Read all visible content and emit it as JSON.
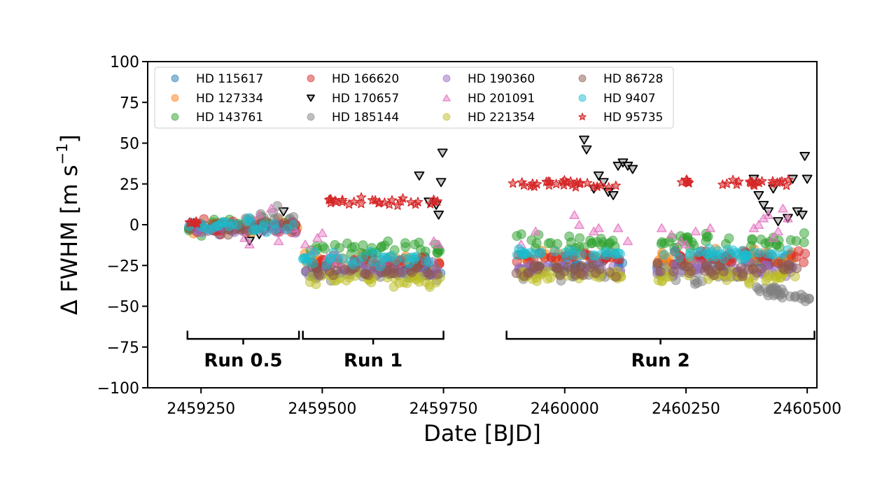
{
  "chart_data": {
    "type": "scatter",
    "xlabel": "Date [BJD]",
    "ylabel_main": "Δ FWHM [m s",
    "ylabel_sup": "−1",
    "ylabel_end": "]",
    "xlim": [
      2459140,
      2460520
    ],
    "ylim": [
      -100,
      100
    ],
    "xticks": [
      2459250,
      2459500,
      2459750,
      2460000,
      2460250,
      2460500
    ],
    "xtick_labels": [
      "2459250",
      "2459500",
      "2459750",
      "2460000",
      "2460250",
      "2460500"
    ],
    "yticks": [
      -100,
      -75,
      -50,
      -25,
      0,
      25,
      50,
      75,
      100
    ],
    "ytick_labels": [
      "−100",
      "−75",
      "−50",
      "−25",
      "0",
      "25",
      "50",
      "75",
      "100"
    ],
    "grid": false,
    "legend_position": "top-left",
    "runs": [
      {
        "label": "Run 0.5",
        "x_start": 2459222,
        "x_end": 2459452
      },
      {
        "label": "Run 1",
        "x_start": 2459460,
        "x_end": 2459750
      },
      {
        "label": "Run 2",
        "x_start": 2459880,
        "x_end": 2460515
      }
    ],
    "series": [
      {
        "name": "HD 115617",
        "color": "#1f77b4",
        "marker": "circle",
        "clusters": [
          [
            2459225,
            2459300,
            -2,
            4
          ],
          [
            2459460,
            2459745,
            -27,
            4
          ],
          [
            2459900,
            2460120,
            -25,
            3
          ],
          [
            2460190,
            2460480,
            -22,
            3
          ]
        ]
      },
      {
        "name": "HD 127334",
        "color": "#ff7f0e",
        "marker": "circle",
        "clusters": [
          [
            2459225,
            2459450,
            -1,
            3
          ],
          [
            2459460,
            2459745,
            -22,
            3
          ],
          [
            2459900,
            2460120,
            -19,
            2
          ],
          [
            2460190,
            2460480,
            -20,
            3
          ]
        ]
      },
      {
        "name": "HD 143761",
        "color": "#2ca02c",
        "marker": "circle",
        "clusters": [
          [
            2459225,
            2459450,
            -1,
            4
          ],
          [
            2459460,
            2459745,
            -15,
            3
          ],
          [
            2459900,
            2460120,
            -11,
            3
          ],
          [
            2460190,
            2460500,
            -10,
            3
          ]
        ]
      },
      {
        "name": "HD 166620",
        "color": "#d62728",
        "marker": "circle",
        "clusters": [
          [
            2459225,
            2459450,
            -2,
            3
          ],
          [
            2459460,
            2459745,
            -24,
            3
          ],
          [
            2459900,
            2460120,
            -20,
            2
          ],
          [
            2460190,
            2460500,
            -20,
            3
          ]
        ]
      },
      {
        "name": "HD 170657",
        "color": "#7f7f7f",
        "marker": "triangle-down",
        "points": [
          [
            2459370,
            -6
          ],
          [
            2459380,
            -4
          ],
          [
            2459350,
            -10
          ],
          [
            2459420,
            8
          ],
          [
            2459700,
            30
          ],
          [
            2459720,
            14
          ],
          [
            2459735,
            12
          ],
          [
            2459740,
            6
          ],
          [
            2459745,
            26
          ],
          [
            2459748,
            44
          ],
          [
            2460040,
            52
          ],
          [
            2460045,
            46
          ],
          [
            2460070,
            30
          ],
          [
            2460080,
            26
          ],
          [
            2460090,
            20
          ],
          [
            2460100,
            18
          ],
          [
            2460110,
            36
          ],
          [
            2460120,
            38
          ],
          [
            2460130,
            36
          ],
          [
            2460140,
            34
          ],
          [
            2460060,
            22
          ],
          [
            2460390,
            28
          ],
          [
            2460400,
            18
          ],
          [
            2460410,
            12
          ],
          [
            2460420,
            8
          ],
          [
            2460440,
            2
          ],
          [
            2460460,
            4
          ],
          [
            2460470,
            28
          ],
          [
            2460480,
            8
          ],
          [
            2460490,
            6
          ],
          [
            2460495,
            42
          ],
          [
            2460500,
            28
          ],
          [
            2460430,
            22
          ]
        ]
      },
      {
        "name": "HD 185144",
        "color": "#7f7f7f",
        "marker": "circle",
        "clusters": [
          [
            2459340,
            2459450,
            5,
            4
          ],
          [
            2459460,
            2459745,
            -30,
            3
          ],
          [
            2459900,
            2460120,
            -30,
            3
          ],
          [
            2460190,
            2460370,
            -33,
            4
          ]
        ],
        "trend": [
          2460380,
          2460505,
          -38,
          -45,
          2
        ]
      },
      {
        "name": "HD 190360",
        "color": "#9467bd",
        "marker": "circle",
        "clusters": [
          [
            2459225,
            2459450,
            -2,
            3
          ],
          [
            2459460,
            2459745,
            -28,
            3
          ],
          [
            2459900,
            2460120,
            -27,
            3
          ],
          [
            2460190,
            2460480,
            -28,
            3
          ]
        ]
      },
      {
        "name": "HD 201091",
        "color": "#e377c2",
        "marker": "triangle-up",
        "points": [
          [
            2459340,
            -8
          ],
          [
            2459350,
            -12
          ],
          [
            2459360,
            2
          ],
          [
            2459370,
            6
          ],
          [
            2459380,
            -4
          ],
          [
            2459395,
            10
          ],
          [
            2459410,
            -10
          ],
          [
            2459440,
            -2
          ],
          [
            2459465,
            -12
          ],
          [
            2459480,
            -16
          ],
          [
            2459490,
            -8
          ],
          [
            2459500,
            -5
          ],
          [
            2459510,
            -20
          ],
          [
            2459520,
            -22
          ],
          [
            2459530,
            -18
          ],
          [
            2459730,
            -10
          ],
          [
            2459740,
            -12
          ],
          [
            2459910,
            -12
          ],
          [
            2459940,
            -4
          ],
          [
            2460020,
            6
          ],
          [
            2460030,
            0
          ],
          [
            2460060,
            -4
          ],
          [
            2460070,
            -2
          ],
          [
            2460110,
            -2
          ],
          [
            2460130,
            -10
          ],
          [
            2460200,
            -2
          ],
          [
            2460220,
            -6
          ],
          [
            2460240,
            -10
          ],
          [
            2460250,
            -12
          ],
          [
            2460270,
            -4
          ],
          [
            2460300,
            -2
          ],
          [
            2460390,
            -2
          ],
          [
            2460400,
            0
          ],
          [
            2460410,
            4
          ],
          [
            2460420,
            6
          ],
          [
            2460430,
            -8
          ],
          [
            2460440,
            -4
          ],
          [
            2460450,
            10
          ],
          [
            2460460,
            4
          ]
        ]
      },
      {
        "name": "HD 221354",
        "color": "#bcbd22",
        "marker": "circle",
        "clusters": [
          [
            2459460,
            2459745,
            -33,
            3
          ],
          [
            2459900,
            2460120,
            -31,
            2
          ],
          [
            2460190,
            2460480,
            -32,
            3
          ]
        ]
      },
      {
        "name": "HD 86728",
        "color": "#8c564b",
        "marker": "circle",
        "clusters": [
          [
            2459225,
            2459450,
            -1,
            3
          ],
          [
            2459460,
            2459745,
            -28,
            3
          ],
          [
            2459900,
            2460120,
            -28,
            3
          ],
          [
            2460190,
            2460480,
            -27,
            3
          ]
        ]
      },
      {
        "name": "HD 9407",
        "color": "#17becf",
        "marker": "circle",
        "clusters": [
          [
            2459225,
            2459450,
            -1,
            3
          ],
          [
            2459460,
            2459745,
            -21,
            3
          ],
          [
            2459900,
            2460120,
            -18,
            2
          ],
          [
            2460190,
            2460480,
            -18,
            2
          ]
        ]
      },
      {
        "name": "HD 95735",
        "color": "#d62728",
        "marker": "star",
        "clusters": [
          [
            2459225,
            2459245,
            1,
            1
          ],
          [
            2459510,
            2459740,
            14,
            1.5
          ],
          [
            2459890,
            2460115,
            25,
            1.5
          ],
          [
            2460240,
            2460260,
            26,
            1
          ],
          [
            2460310,
            2460470,
            26,
            1.5
          ]
        ]
      }
    ]
  }
}
